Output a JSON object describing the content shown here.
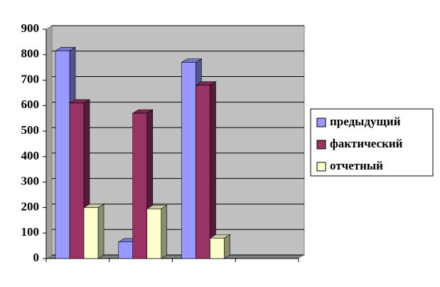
{
  "chart_data": {
    "type": "bar",
    "categories": [
      null,
      null,
      null,
      null
    ],
    "series": [
      {
        "name": "предыдущий",
        "color": "#9999ff",
        "values": [
          815,
          65,
          770,
          null
        ]
      },
      {
        "name": "фактический",
        "color": "#993366",
        "values": [
          610,
          570,
          680,
          null
        ]
      },
      {
        "name": "отчетный",
        "color": "#ffffcc",
        "values": [
          200,
          195,
          80,
          null
        ]
      }
    ],
    "ylim": [
      0,
      900
    ],
    "yticks": [
      0,
      100,
      200,
      300,
      400,
      500,
      600,
      700,
      800,
      900
    ],
    "grid": true,
    "legend": "right"
  }
}
